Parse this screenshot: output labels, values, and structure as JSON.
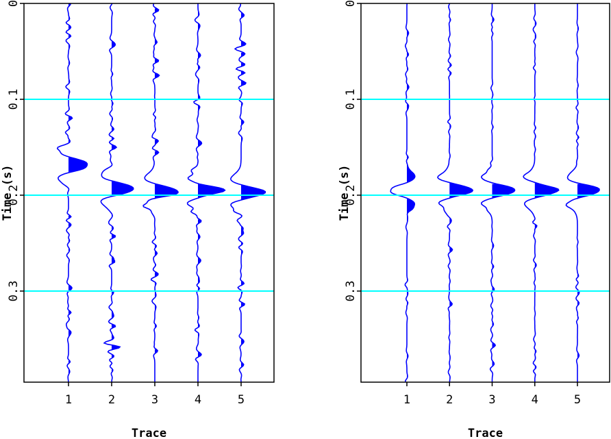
{
  "chart_data": [
    {
      "type": "wiggle",
      "xlabel": "Trace",
      "ylabel": "Time (s)",
      "xticks": [
        "1",
        "2",
        "3",
        "4",
        "5"
      ],
      "yticks": [
        "0",
        "0.1",
        "0.2",
        "0.3"
      ],
      "ylim": [
        0,
        0.395
      ],
      "xlim": [
        0.4,
        5.75
      ],
      "grid_lines_y": [
        0.1,
        0.2,
        0.3
      ],
      "trace_color": "#0000ff",
      "grid_color": "#00ffff",
      "traces": [
        {
          "trace": 1,
          "event_peak_time": 0.168,
          "event_amplitude": 0.65
        },
        {
          "trace": 2,
          "event_peak_time": 0.193,
          "event_amplitude": 0.7
        },
        {
          "trace": 3,
          "event_peak_time": 0.196,
          "event_amplitude": 0.7
        },
        {
          "trace": 4,
          "event_peak_time": 0.195,
          "event_amplitude": 0.72
        },
        {
          "trace": 5,
          "event_peak_time": 0.197,
          "event_amplitude": 0.72
        }
      ]
    },
    {
      "type": "wiggle",
      "xlabel": "Trace",
      "ylabel": "Time (s)",
      "xticks": [
        "1",
        "2",
        "3",
        "4",
        "5"
      ],
      "yticks": [
        "0",
        "0.1",
        "0.2",
        "0.3"
      ],
      "ylim": [
        0,
        0.395
      ],
      "xlim": [
        0.4,
        5.75
      ],
      "grid_lines_y": [
        0.1,
        0.2,
        0.3
      ],
      "trace_color": "#0000ff",
      "grid_color": "#00ffff",
      "traces": [
        {
          "trace": 1,
          "event_peak_time": 0.195,
          "event_amplitude": -0.55
        },
        {
          "trace": 2,
          "event_peak_time": 0.195,
          "event_amplitude": 0.72
        },
        {
          "trace": 3,
          "event_peak_time": 0.195,
          "event_amplitude": 0.72
        },
        {
          "trace": 4,
          "event_peak_time": 0.195,
          "event_amplitude": 0.72
        },
        {
          "trace": 5,
          "event_peak_time": 0.195,
          "event_amplitude": 0.72
        }
      ]
    }
  ]
}
